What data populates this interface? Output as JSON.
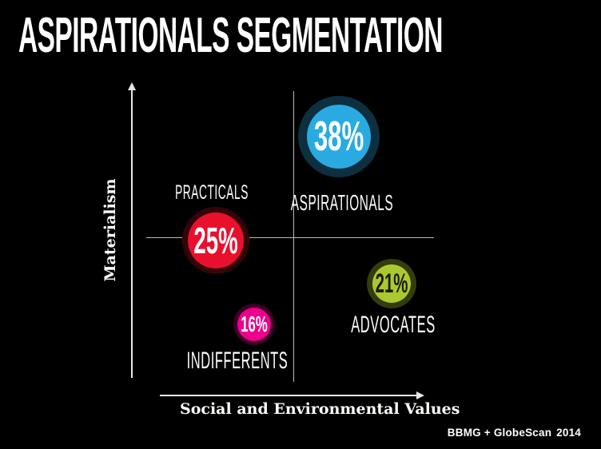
{
  "title": "ASPIRATIONALS SEGMENTATION",
  "axes": {
    "y_label": "Materialism",
    "x_label": "Social and Environmental Values"
  },
  "footer": {
    "source": "BBMG + GlobeScan",
    "year": "2014"
  },
  "segments": [
    {
      "name": "ASPIRATIONALS",
      "pct": "38%",
      "color": "#29abe2",
      "ring_color": "#0d2f3f",
      "text_color": "#ffffff",
      "quadrant": "top-right"
    },
    {
      "name": "PRACTICALS",
      "pct": "25%",
      "color": "#e8112d",
      "ring_color": "#330409",
      "text_color": "#ffffff",
      "quadrant": "top-left"
    },
    {
      "name": "INDIFFERENTS",
      "pct": "16%",
      "color": "#ec008c",
      "ring_color": "#3b0023",
      "text_color": "#ffffff",
      "quadrant": "bottom-left"
    },
    {
      "name": "ADVOCATES",
      "pct": "21%",
      "color": "#abc92f",
      "ring_color": "#333c0e",
      "text_color": "#171d05",
      "quadrant": "bottom-right"
    }
  ],
  "chart_data": {
    "type": "scatter",
    "subtype": "quadrant-bubble",
    "title": "ASPIRATIONALS SEGMENTATION",
    "xlabel": "Social and Environmental Values",
    "ylabel": "Materialism",
    "grid": "crosshair quadrants, axes as arrows, no ticks",
    "legend": false,
    "series": [
      {
        "name": "ASPIRATIONALS",
        "value_pct": 38,
        "x": "high social/environmental values",
        "y": "high materialism",
        "color": "#29abe2"
      },
      {
        "name": "PRACTICALS",
        "value_pct": 25,
        "x": "low social/environmental values",
        "y": "mid materialism",
        "color": "#e8112d"
      },
      {
        "name": "INDIFFERENTS",
        "value_pct": 16,
        "x": "low social/environmental values",
        "y": "low materialism",
        "color": "#ec008c"
      },
      {
        "name": "ADVOCATES",
        "value_pct": 21,
        "x": "high social/environmental values",
        "y": "mid-low materialism",
        "color": "#abc92f"
      }
    ],
    "source": "BBMG + GlobeScan 2014"
  }
}
